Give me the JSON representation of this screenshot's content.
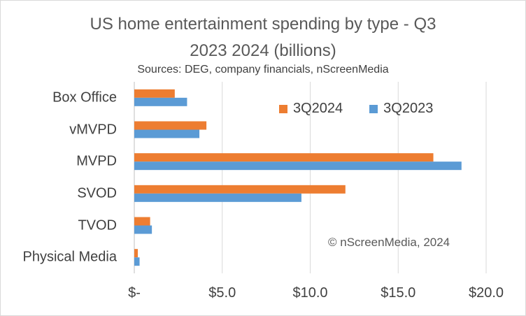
{
  "chart_data": {
    "type": "bar",
    "orientation": "horizontal",
    "title_lines": [
      "US home entertainment spending by type - Q3",
      "2023 2024 (billions)"
    ],
    "subtitle": "Sources: DEG, company financials, nScreenMedia",
    "categories": [
      "Box Office",
      "vMVPD",
      "MVPD",
      "SVOD",
      "TVOD",
      "Physical Media"
    ],
    "series": [
      {
        "name": "3Q2024",
        "color": "#ed7d31",
        "values": [
          2.3,
          4.1,
          17.0,
          12.0,
          0.9,
          0.2
        ]
      },
      {
        "name": "3Q2023",
        "color": "#5b9bd5",
        "values": [
          3.0,
          3.7,
          18.6,
          9.5,
          1.0,
          0.3
        ]
      }
    ],
    "xlim": [
      0,
      20
    ],
    "xticks": [
      0,
      5,
      10,
      15,
      20
    ],
    "xtick_labels": [
      "$-",
      "$5.0",
      "$10.0",
      "$15.0",
      "$20.0"
    ],
    "grid": true,
    "legend_position": "top-right",
    "annotation": "© nScreenMedia, 2024"
  }
}
